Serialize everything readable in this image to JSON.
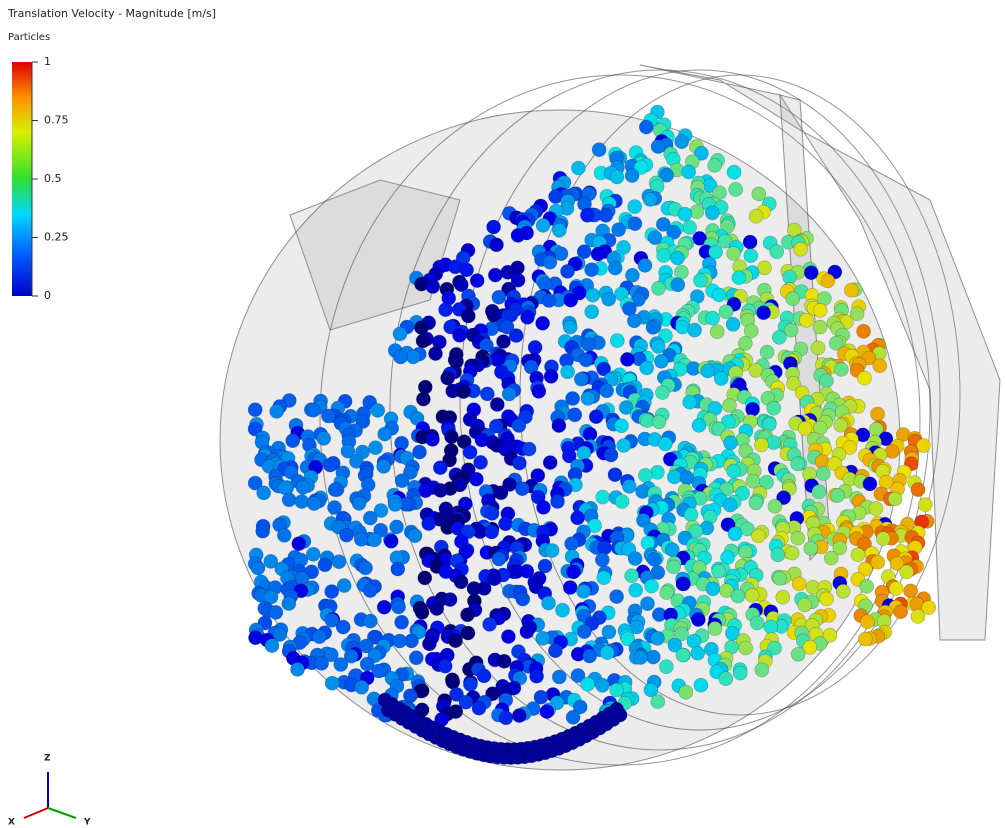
{
  "header": {
    "title": "Translation Velocity - Magnitude [m/s]",
    "subtitle": "Particles"
  },
  "legend": {
    "range": [
      0,
      1
    ],
    "ticks": [
      0,
      0.25,
      0.5,
      0.75,
      1
    ]
  },
  "triad": {
    "z": "Z",
    "x": "X",
    "y": "Y"
  }
}
